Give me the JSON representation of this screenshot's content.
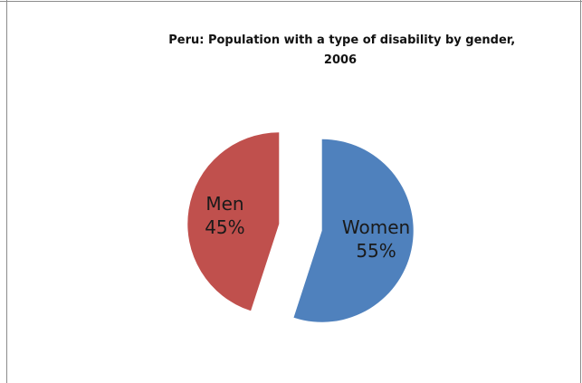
{
  "chart_data": {
    "type": "pie",
    "title": "Peru: Population with a type of disability by gender, 2006",
    "title_lines": [
      "Peru: Population with a type of disability by gender,",
      "2006"
    ],
    "slices": [
      {
        "label": "Men",
        "value": 45,
        "value_label": "45%",
        "color": "#C0504D"
      },
      {
        "label": "Women",
        "value": 55,
        "value_label": "55%",
        "color": "#4F81BD"
      }
    ],
    "exploded": true,
    "legend": "none"
  }
}
